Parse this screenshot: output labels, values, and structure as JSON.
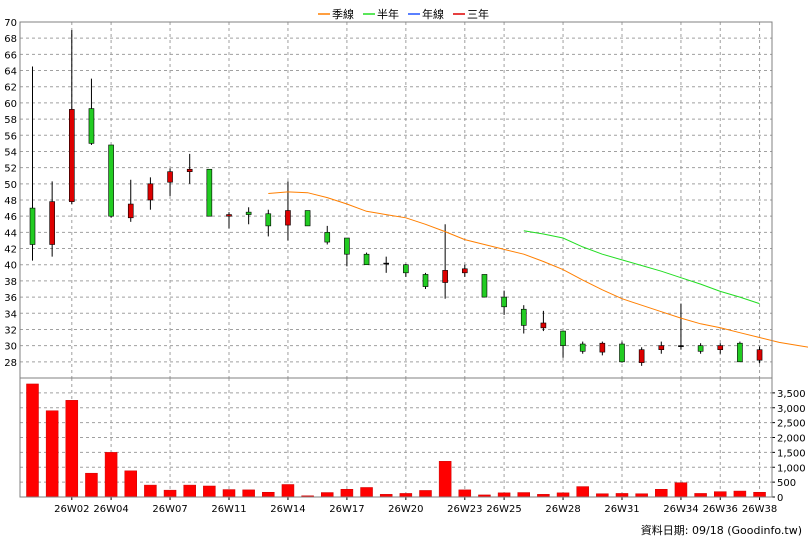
{
  "legend": [
    {
      "label": "季線",
      "color": "#ff7f00"
    },
    {
      "label": "半年",
      "color": "#22dd22"
    },
    {
      "label": "年線",
      "color": "#2255ff"
    },
    {
      "label": "三年",
      "color": "#dd0000"
    }
  ],
  "credit": "資料日期: 09/18 (Goodinfo.tw)",
  "chart_data": {
    "type": "candlestick",
    "x_tick_labels": [
      {
        "index": 2,
        "label": "26W02"
      },
      {
        "index": 4,
        "label": "26W04"
      },
      {
        "index": 7,
        "label": "26W07"
      },
      {
        "index": 10,
        "label": "26W11"
      },
      {
        "index": 13,
        "label": "26W14"
      },
      {
        "index": 16,
        "label": "26W17"
      },
      {
        "index": 19,
        "label": "26W20"
      },
      {
        "index": 22,
        "label": "26W23"
      },
      {
        "index": 24,
        "label": "26W25"
      },
      {
        "index": 27,
        "label": "26W28"
      },
      {
        "index": 30,
        "label": "26W31"
      },
      {
        "index": 33,
        "label": "26W34"
      },
      {
        "index": 35,
        "label": "26W36"
      },
      {
        "index": 37,
        "label": "26W38"
      }
    ],
    "price_axis": {
      "min": 26,
      "max": 70,
      "ticks": [
        28,
        30,
        32,
        34,
        36,
        38,
        40,
        42,
        44,
        46,
        48,
        50,
        52,
        54,
        56,
        58,
        60,
        62,
        64,
        66,
        68,
        70
      ]
    },
    "volume_axis": {
      "min": 0,
      "max": 4000,
      "ticks": [
        0,
        500,
        1000,
        1500,
        2000,
        2500,
        3000,
        3500
      ],
      "tick_labels": [
        "0",
        "500",
        "1,000",
        "1,500",
        "2,000",
        "2,500",
        "3,000",
        "3,500"
      ]
    },
    "up_color": "#dd0000",
    "down_color": "#22cc22",
    "candles": [
      {
        "open": 47.0,
        "high": 64.5,
        "low": 40.5,
        "close": 42.5
      },
      {
        "open": 42.5,
        "high": 50.3,
        "low": 41.0,
        "close": 47.8
      },
      {
        "open": 47.8,
        "high": 69.0,
        "low": 47.5,
        "close": 59.2
      },
      {
        "open": 59.3,
        "high": 63.0,
        "low": 54.8,
        "close": 55.0
      },
      {
        "open": 54.8,
        "high": 54.8,
        "low": 45.8,
        "close": 46.0
      },
      {
        "open": 45.8,
        "high": 50.5,
        "low": 45.3,
        "close": 47.5
      },
      {
        "open": 48.0,
        "high": 50.8,
        "low": 46.8,
        "close": 50.0
      },
      {
        "open": 50.2,
        "high": 51.9,
        "low": 48.5,
        "close": 51.5
      },
      {
        "open": 51.5,
        "high": 53.7,
        "low": 50.0,
        "close": 51.8
      },
      {
        "open": 51.8,
        "high": 51.8,
        "low": 46.0,
        "close": 46.0
      },
      {
        "open": 46.0,
        "high": 46.5,
        "low": 44.5,
        "close": 46.2
      },
      {
        "open": 46.5,
        "high": 47.1,
        "low": 45.0,
        "close": 46.2
      },
      {
        "open": 46.3,
        "high": 46.8,
        "low": 43.5,
        "close": 44.8
      },
      {
        "open": 44.9,
        "high": 50.3,
        "low": 43.0,
        "close": 46.7
      },
      {
        "open": 46.7,
        "high": 46.7,
        "low": 44.8,
        "close": 44.8
      },
      {
        "open": 44.0,
        "high": 44.8,
        "low": 42.5,
        "close": 42.8
      },
      {
        "open": 43.3,
        "high": 43.3,
        "low": 39.8,
        "close": 41.3
      },
      {
        "open": 41.3,
        "high": 41.5,
        "low": 40.0,
        "close": 40.0
      },
      {
        "open": 40.2,
        "high": 41.0,
        "low": 39.0,
        "close": 40.2
      },
      {
        "open": 40.0,
        "high": 40.1,
        "low": 38.5,
        "close": 39.0
      },
      {
        "open": 38.8,
        "high": 39.0,
        "low": 37.0,
        "close": 37.3
      },
      {
        "open": 37.8,
        "high": 45.0,
        "low": 35.8,
        "close": 39.3
      },
      {
        "open": 39.0,
        "high": 40.0,
        "low": 38.5,
        "close": 39.5
      },
      {
        "open": 38.8,
        "high": 38.8,
        "low": 36.0,
        "close": 36.0
      },
      {
        "open": 36.0,
        "high": 36.8,
        "low": 33.8,
        "close": 34.8
      },
      {
        "open": 34.5,
        "high": 35.0,
        "low": 31.5,
        "close": 32.5
      },
      {
        "open": 32.2,
        "high": 34.3,
        "low": 31.8,
        "close": 32.8
      },
      {
        "open": 31.8,
        "high": 31.8,
        "low": 28.5,
        "close": 30.0
      },
      {
        "open": 30.2,
        "high": 30.5,
        "low": 29.0,
        "close": 29.3
      },
      {
        "open": 29.2,
        "high": 30.5,
        "low": 28.8,
        "close": 30.3
      },
      {
        "open": 30.2,
        "high": 30.5,
        "low": 27.9,
        "close": 28.0
      },
      {
        "open": 27.9,
        "high": 29.8,
        "low": 27.5,
        "close": 29.5
      },
      {
        "open": 29.5,
        "high": 30.5,
        "low": 29.0,
        "close": 30.0
      },
      {
        "open": 30.0,
        "high": 35.2,
        "low": 29.5,
        "close": 30.0
      },
      {
        "open": 30.0,
        "high": 30.3,
        "low": 29.0,
        "close": 29.3
      },
      {
        "open": 29.5,
        "high": 30.3,
        "low": 29.0,
        "close": 30.0
      },
      {
        "open": 30.3,
        "high": 30.5,
        "low": 28.0,
        "close": 28.0
      },
      {
        "open": 28.2,
        "high": 29.9,
        "low": 27.8,
        "close": 29.5
      }
    ],
    "volumes": [
      3800,
      2900,
      3250,
      800,
      1500,
      880,
      400,
      230,
      400,
      370,
      250,
      240,
      160,
      420,
      40,
      150,
      260,
      320,
      90,
      120,
      220,
      1200,
      240,
      70,
      140,
      150,
      90,
      140,
      350,
      110,
      120,
      110,
      260,
      480,
      120,
      180,
      200,
      160
    ],
    "series": [
      {
        "name": "季線",
        "color": "#ff7f00",
        "start": 12,
        "values": [
          48.8,
          49.0,
          48.9,
          48.3,
          47.5,
          46.6,
          46.2,
          45.8,
          45.0,
          44.1,
          43.1,
          42.5,
          41.9,
          41.3,
          40.4,
          39.4,
          38.1,
          36.9,
          35.8,
          35.0,
          34.2,
          33.4,
          32.7,
          32.2,
          31.6,
          31.0,
          30.4,
          30.0,
          29.6
        ]
      },
      {
        "name": "半年",
        "color": "#22dd22",
        "start": 25,
        "values": [
          44.2,
          43.8,
          43.3,
          42.2,
          41.3,
          40.6,
          39.9,
          39.2,
          38.4,
          37.6,
          36.7,
          36.0,
          35.2
        ]
      }
    ]
  }
}
